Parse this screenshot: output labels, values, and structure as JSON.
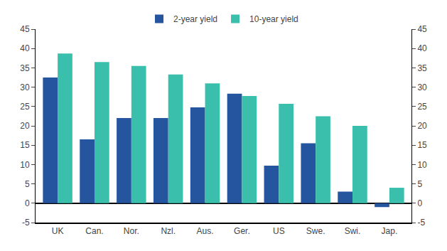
{
  "chart_data": {
    "type": "bar",
    "categories": [
      "UK",
      "Can.",
      "Nor.",
      "Nzl.",
      "Aus.",
      "Ger.",
      "US",
      "Swe.",
      "Swi.",
      "Jap."
    ],
    "series": [
      {
        "name": "2-year yield",
        "color": "#2655a0",
        "values": [
          32.5,
          16.5,
          22.0,
          22.0,
          24.8,
          28.3,
          9.7,
          15.5,
          3.0,
          -1.0
        ]
      },
      {
        "name": "10-year yield",
        "color": "#3bbfad",
        "values": [
          38.7,
          36.5,
          35.5,
          33.3,
          31.0,
          27.7,
          25.7,
          22.5,
          20.0,
          4.0
        ]
      }
    ],
    "ylim": [
      -5,
      45
    ],
    "yticks": [
      -5,
      0,
      5,
      10,
      15,
      20,
      25,
      30,
      35,
      40,
      45
    ],
    "y2lim": [
      -5,
      45
    ],
    "y2ticks": [
      -5,
      0,
      5,
      10,
      15,
      20,
      25,
      30,
      35,
      40,
      45
    ],
    "grid": false,
    "legend": "top"
  }
}
